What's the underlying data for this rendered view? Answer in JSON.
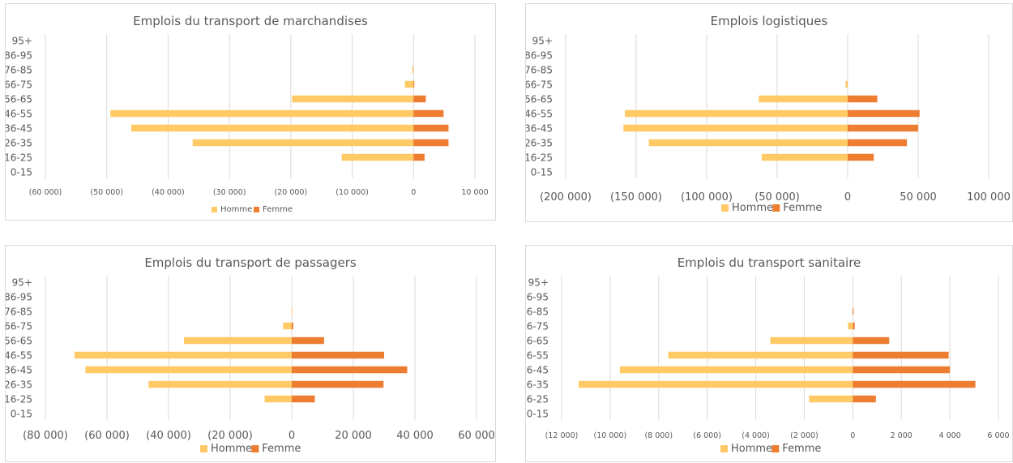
{
  "chart_data": [
    {
      "type": "bar",
      "orientation": "horizontal",
      "title": "Emplois du transport de marchandises",
      "categories": [
        "95+",
        "86-95",
        "76-85",
        "66-75",
        "56-65",
        "46-55",
        "36-45",
        "26-35",
        "16-25",
        "0-15"
      ],
      "series": [
        {
          "name": "Homme",
          "values": [
            0,
            0,
            -200,
            -1400,
            -19800,
            -49400,
            -46000,
            -36000,
            -11700,
            0
          ]
        },
        {
          "name": "Femme",
          "values": [
            0,
            0,
            0,
            100,
            2000,
            4900,
            5700,
            5700,
            1800,
            0
          ]
        }
      ],
      "xlim": [
        -60000,
        10000
      ],
      "tick_values": [
        -60000,
        -50000,
        -40000,
        -30000,
        -20000,
        -10000,
        0,
        10000
      ],
      "tick_labels": [
        "(60 000)",
        "(50 000)",
        "(40 000)",
        "(30 000)",
        "(20 000)",
        "(10 000)",
        "0",
        "10 000"
      ],
      "grid": true,
      "legend": "bottom",
      "colors": {
        "Homme": "#ffc966",
        "Femme": "#ed7d31"
      }
    },
    {
      "type": "bar",
      "orientation": "horizontal",
      "title": "Emplois logistiques",
      "categories": [
        "95+",
        "86-95",
        "76-85",
        "66-75",
        "56-65",
        "46-55",
        "36-45",
        "26-35",
        "16-25",
        "0-15"
      ],
      "series": [
        {
          "name": "Homme",
          "values": [
            0,
            0,
            0,
            -1500,
            -63000,
            -158000,
            -159000,
            -141000,
            -61000,
            0
          ]
        },
        {
          "name": "Femme",
          "values": [
            0,
            0,
            0,
            0,
            21000,
            51000,
            50000,
            42000,
            18500,
            0
          ]
        }
      ],
      "xlim": [
        -200000,
        100000
      ],
      "tick_values": [
        -200000,
        -150000,
        -100000,
        -50000,
        0,
        50000,
        100000
      ],
      "tick_labels": [
        "(200 000)",
        "(150 000)",
        "(100 000)",
        "(50 000)",
        "0",
        "50 000",
        "100 000"
      ],
      "grid": true,
      "legend": "bottom",
      "colors": {
        "Homme": "#ffc966",
        "Femme": "#ed7d31"
      }
    },
    {
      "type": "bar",
      "orientation": "horizontal",
      "title": "Emplois du transport de passagers",
      "categories": [
        "95+",
        "86-95",
        "76-85",
        "66-75",
        "56-65",
        "46-55",
        "36-45",
        "26-35",
        "16-25",
        "0-15"
      ],
      "series": [
        {
          "name": "Homme",
          "values": [
            0,
            0,
            -100,
            -2800,
            -35000,
            -70500,
            -67000,
            -46500,
            -8800,
            0
          ]
        },
        {
          "name": "Femme",
          "values": [
            0,
            0,
            0,
            500,
            10500,
            30000,
            37500,
            29800,
            7500,
            0
          ]
        }
      ],
      "xlim": [
        -80000,
        60000
      ],
      "tick_values": [
        -80000,
        -60000,
        -40000,
        -20000,
        0,
        20000,
        40000,
        60000
      ],
      "tick_labels": [
        "(80 000)",
        "(60 000)",
        "(40 000)",
        "(20 000)",
        "0",
        "20 000",
        "40 000",
        "60 000"
      ],
      "grid": true,
      "legend": "bottom",
      "colors": {
        "Homme": "#ffc966",
        "Femme": "#ed7d31"
      }
    },
    {
      "type": "bar",
      "orientation": "horizontal",
      "title": "Emplois du transport sanitaire",
      "categories": [
        "95+",
        "86-95",
        "76-85",
        "66-75",
        "56-65",
        "46-55",
        "36-45",
        "26-35",
        "16-25",
        "0-15"
      ],
      "series": [
        {
          "name": "Homme",
          "values": [
            0,
            0,
            0,
            -200,
            -3400,
            -7600,
            -9600,
            -11300,
            -1800,
            0
          ]
        },
        {
          "name": "Femme",
          "values": [
            0,
            0,
            20,
            80,
            1500,
            3950,
            4000,
            5050,
            950,
            0
          ]
        }
      ],
      "xlim": [
        -12000,
        6000
      ],
      "tick_values": [
        -12000,
        -10000,
        -8000,
        -6000,
        -4000,
        -2000,
        0,
        2000,
        4000,
        6000
      ],
      "tick_labels": [
        "(12 000)",
        "(10 000)",
        "(8 000)",
        "(6 000)",
        "(4 000)",
        "(2 000)",
        "0",
        "2 000",
        "4 000",
        "6 000"
      ],
      "grid": true,
      "legend": "bottom",
      "colors": {
        "Homme": "#ffc966",
        "Femme": "#ed7d31"
      }
    }
  ]
}
